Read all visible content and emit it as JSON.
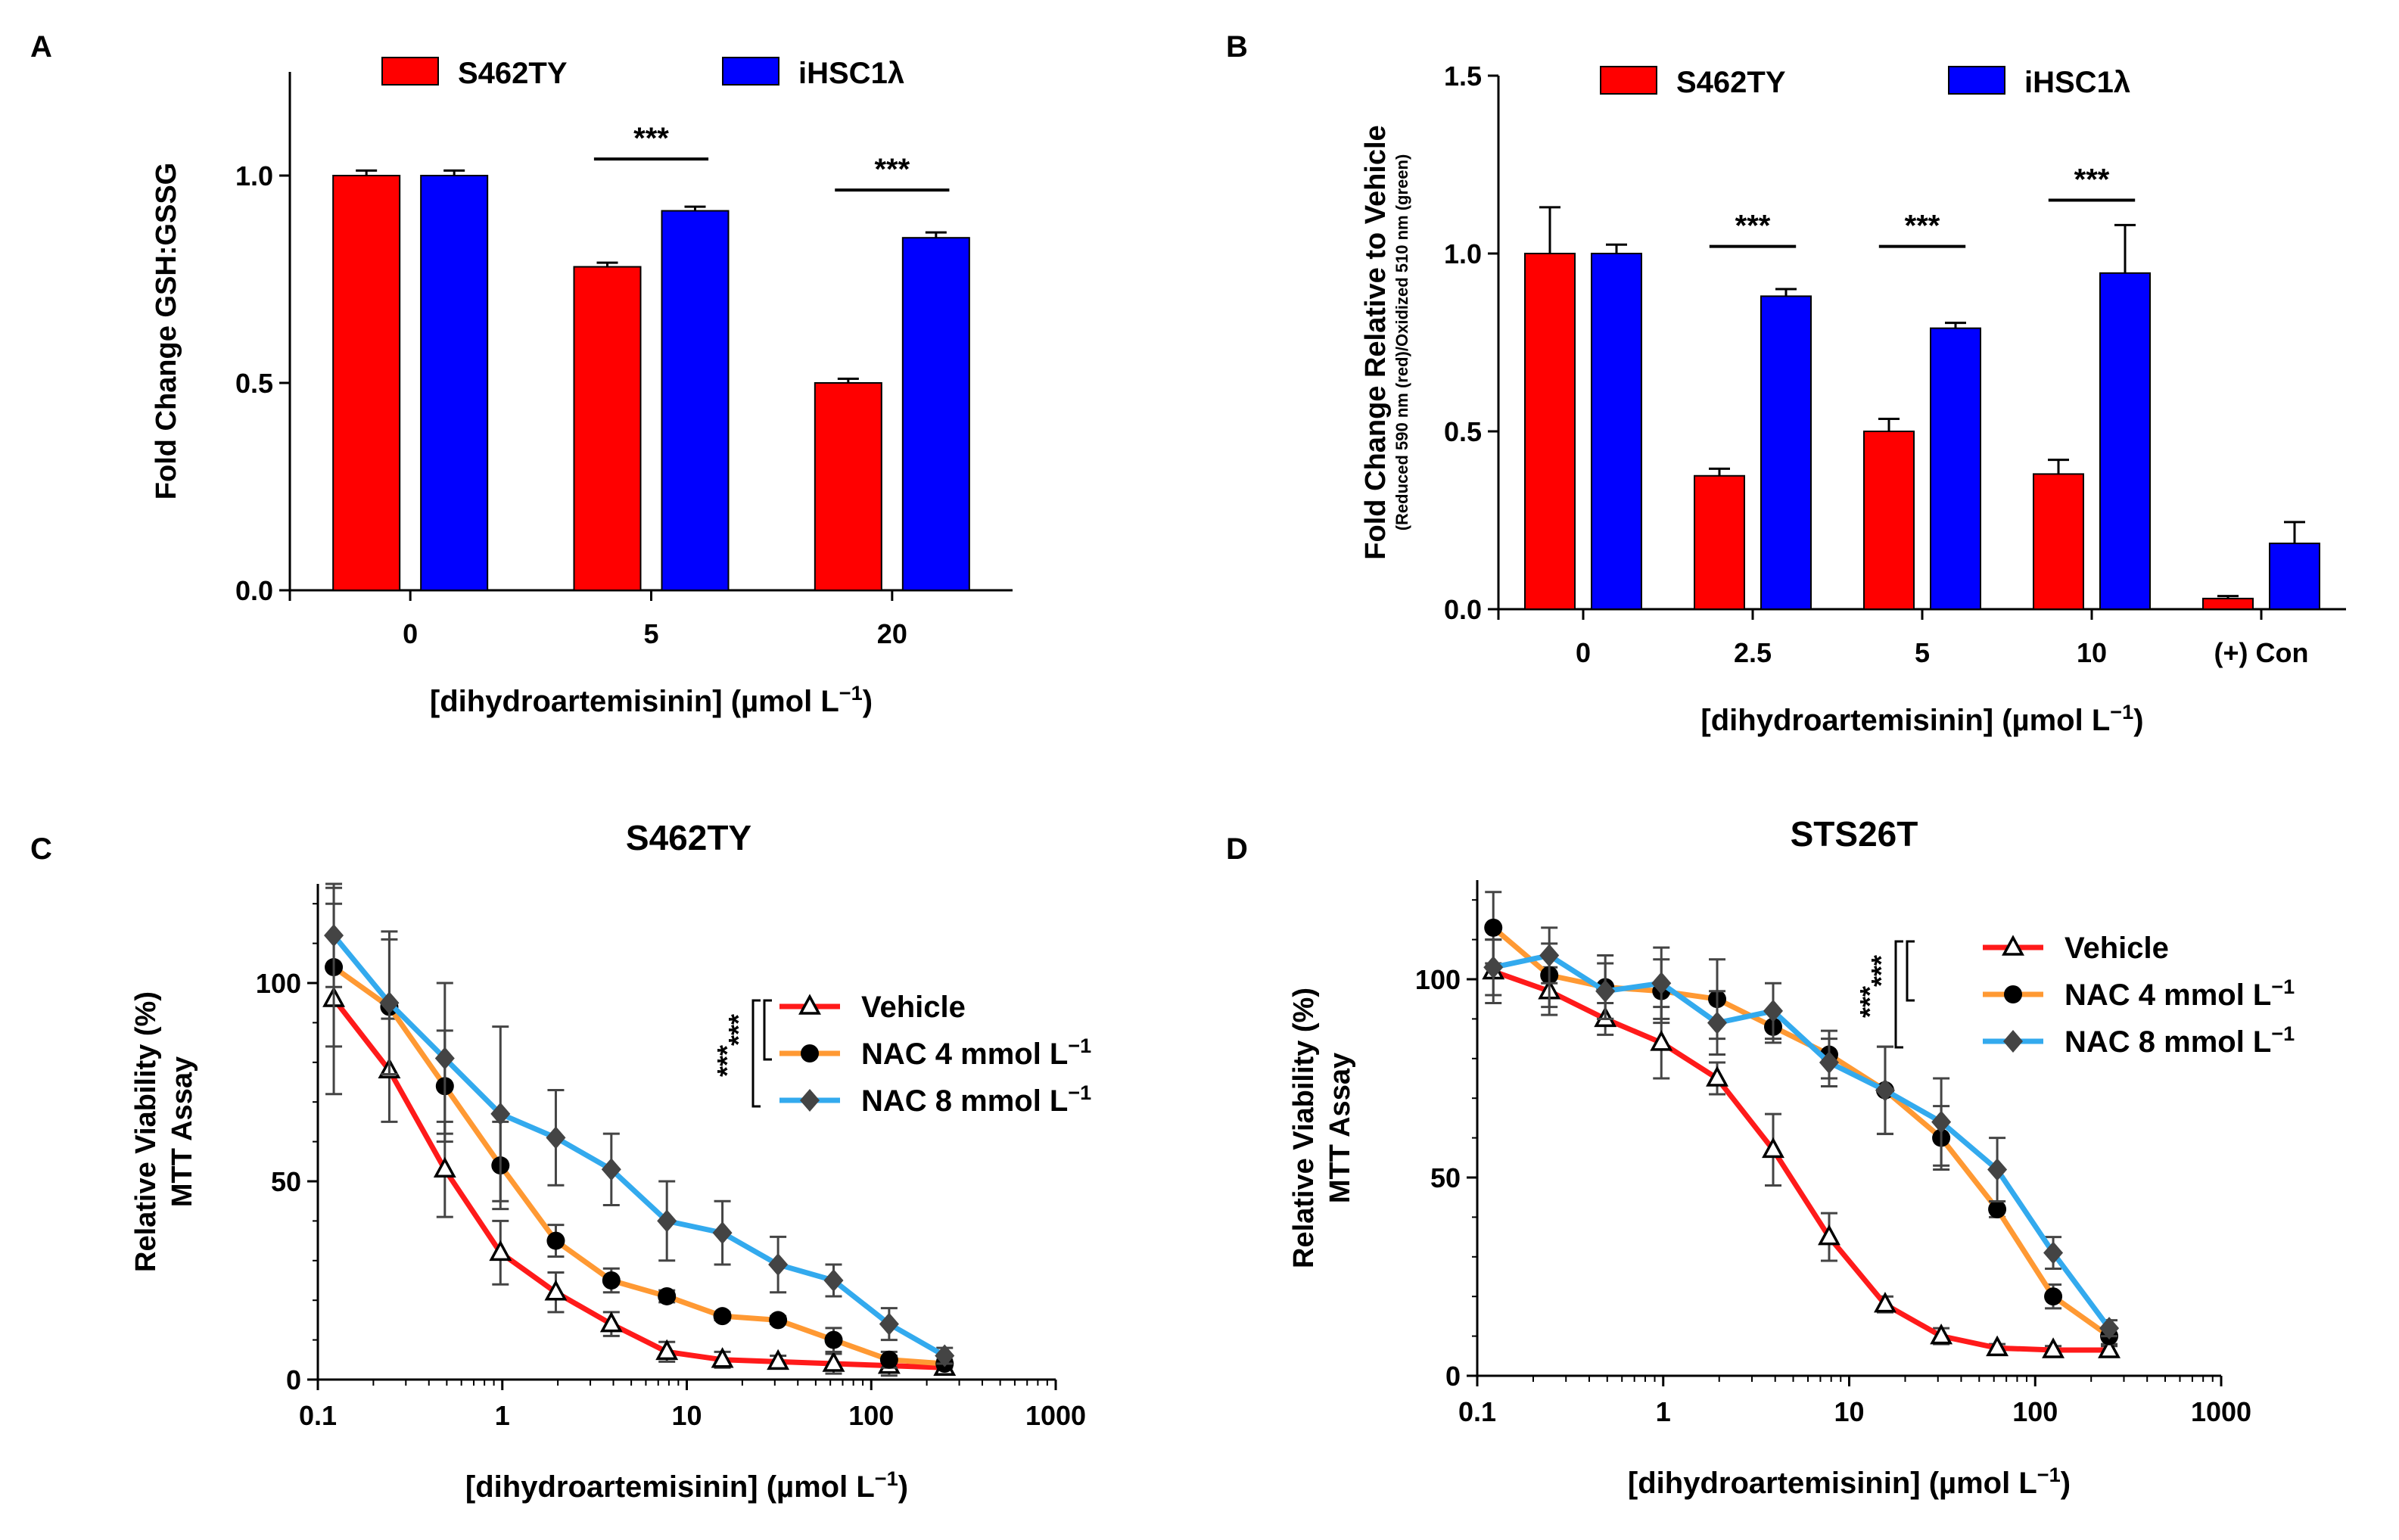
{
  "colors": {
    "red": "#ff0000",
    "blue": "#0000ff",
    "curve_red": "#ff1a1a",
    "curve_orange": "#ff9933",
    "curve_blue": "#33aaee",
    "marker_dark": "#000000",
    "marker_gray": "#444444"
  },
  "chart_data": [
    {
      "panel": "A",
      "type": "bar",
      "title": "",
      "ylabel": "Fold  Change GSH:GSSG",
      "ylabel_sub": "",
      "xlabel": "[dihydroartemisinin] (µmol L",
      "xlabel_sup": "−1",
      "xlabel_end": ")",
      "categories": [
        "0",
        "5",
        "20"
      ],
      "ylim": [
        0,
        1.25
      ],
      "yticks": [
        "0.0",
        "0.5",
        "1.0"
      ],
      "ytick_values": [
        0,
        0.5,
        1.0
      ],
      "legend_position": "top",
      "series": [
        {
          "name": "S462TY",
          "color": "#ff0000",
          "values": [
            1.0,
            0.78,
            0.5
          ],
          "errors": [
            0.012,
            0.01,
            0.01
          ]
        },
        {
          "name": "iHSC1λ",
          "color": "#0000ff",
          "values": [
            1.0,
            0.915,
            0.85
          ],
          "errors": [
            0.012,
            0.01,
            0.013
          ]
        }
      ],
      "significance": [
        {
          "category_index": 1,
          "label": "***",
          "y": 1.04
        },
        {
          "category_index": 2,
          "label": "***",
          "y": 0.965
        }
      ]
    },
    {
      "panel": "B",
      "type": "bar",
      "title": "",
      "ylabel": "Fold  Change Relative to  Vehicle",
      "ylabel_sub": "(Reduced 590 nm (red)/Oxidized 510 nm (green)",
      "xlabel": "[dihydroartemisinin] (µmol L",
      "xlabel_sup": "−1",
      "xlabel_end": ")",
      "categories": [
        "0",
        "2.5",
        "5",
        "10",
        "(+) Con"
      ],
      "ylim": [
        0,
        1.5
      ],
      "yticks": [
        "0.0",
        "0.5",
        "1.0",
        "1.5"
      ],
      "ytick_values": [
        0,
        0.5,
        1.0,
        1.5
      ],
      "legend_position": "top",
      "series": [
        {
          "name": "S462TY",
          "color": "#ff0000",
          "values": [
            1.0,
            0.375,
            0.5,
            0.38,
            0.03
          ],
          "errors": [
            0.13,
            0.02,
            0.035,
            0.04,
            0.007
          ]
        },
        {
          "name": "iHSC1λ",
          "color": "#0000ff",
          "values": [
            1.0,
            0.88,
            0.79,
            0.945,
            0.185
          ],
          "errors": [
            0.025,
            0.02,
            0.015,
            0.135,
            0.06
          ]
        }
      ],
      "significance": [
        {
          "category_index": 1,
          "label": "***",
          "y": 1.02
        },
        {
          "category_index": 2,
          "label": "***",
          "y": 1.02
        },
        {
          "category_index": 3,
          "label": "***",
          "y": 1.15
        }
      ]
    },
    {
      "panel": "C",
      "type": "line",
      "title": "S462TY",
      "ylabel": "Relative Viability (%)",
      "ylabel_sub": "MTT  Assay",
      "xlabel": "[dihydroartemisinin] (µmol L",
      "xlabel_sup": "−1",
      "xlabel_end": ")",
      "xscale": "log",
      "xlim": [
        0.1,
        1000
      ],
      "ylim": [
        0,
        125
      ],
      "xticks": [
        "0.1",
        "1",
        "10",
        "100",
        "1000"
      ],
      "xtick_values": [
        0.1,
        1,
        10,
        100,
        1000
      ],
      "yticks": [
        "0",
        "50",
        "100"
      ],
      "ytick_values": [
        0,
        50,
        100
      ],
      "legend_position": "right",
      "x": [
        0.122,
        0.244,
        0.488,
        0.977,
        1.95,
        3.9,
        7.8,
        15.6,
        31.25,
        62.5,
        125,
        250
      ],
      "series": [
        {
          "name": "Vehicle",
          "color": "#ff1a1a",
          "marker": "triangle",
          "values": [
            96,
            78,
            53,
            32,
            22,
            14,
            7,
            5,
            4.5,
            4,
            3.5,
            3
          ],
          "errors": [
            24,
            13,
            12,
            8,
            5,
            3,
            2.5,
            2,
            1.5,
            2.5,
            2.5,
            1.5
          ]
        },
        {
          "name": "NAC 4 mmol L",
          "name_sup": "−1",
          "color": "#ff9933",
          "marker": "circle",
          "values": [
            104,
            94,
            74,
            54,
            35,
            25,
            21,
            16,
            15,
            10,
            5,
            4
          ],
          "errors": [
            20,
            17,
            14,
            11,
            4,
            3,
            1.5,
            1,
            1,
            3,
            2,
            1
          ]
        },
        {
          "name": "NAC 8 mmol L",
          "name_sup": "−1",
          "color": "#33aaee",
          "marker": "diamond",
          "values": [
            112,
            95,
            81,
            67,
            61,
            53,
            40,
            37,
            29,
            25,
            14,
            6
          ],
          "errors": [
            13,
            18,
            19,
            22,
            12,
            9,
            10,
            8,
            7,
            4,
            4,
            2
          ]
        }
      ],
      "significance_labels": [
        "***",
        "***"
      ]
    },
    {
      "panel": "D",
      "type": "line",
      "title": "STS26T",
      "ylabel": "Relative Viability (%)",
      "ylabel_sub": "MTT  Assay",
      "xlabel": "[dihydroartemisinin] (µmol L",
      "xlabel_sup": "−1",
      "xlabel_end": ")",
      "xscale": "log",
      "xlim": [
        0.1,
        1000
      ],
      "ylim": [
        0,
        125
      ],
      "xticks": [
        "0.1",
        "1",
        "10",
        "100",
        "1000"
      ],
      "xtick_values": [
        0.1,
        1,
        10,
        100,
        1000
      ],
      "yticks": [
        "0",
        "50",
        "100"
      ],
      "ytick_values": [
        0,
        50,
        100
      ],
      "legend_position": "top-right",
      "x": [
        0.122,
        0.244,
        0.488,
        0.977,
        1.95,
        3.9,
        7.8,
        15.6,
        31.25,
        62.5,
        125,
        250
      ],
      "series": [
        {
          "name": "Vehicle",
          "color": "#ff1a1a",
          "marker": "triangle",
          "values": [
            102,
            97,
            90,
            84,
            75,
            57,
            35,
            18,
            10,
            7,
            6.5,
            6.5
          ],
          "errors": [
            8,
            6,
            4,
            9,
            4,
            9,
            6,
            2,
            2,
            1,
            1,
            1
          ]
        },
        {
          "name": "NAC 4 mmol L",
          "name_sup": "−1",
          "color": "#ff9933",
          "marker": "circle",
          "values": [
            113,
            101,
            98,
            97,
            95,
            88,
            81,
            72,
            60,
            42,
            20,
            10
          ],
          "errors": [
            9,
            8,
            8,
            8,
            10,
            4,
            6,
            11,
            8,
            2,
            3,
            2
          ]
        },
        {
          "name": "NAC 8 mmol L",
          "name_sup": "−1",
          "color": "#33aaee",
          "marker": "diamond",
          "values": [
            103,
            106,
            97,
            99,
            89,
            92,
            79,
            72,
            64,
            52,
            31,
            12
          ],
          "errors": [
            7,
            7,
            7,
            9,
            8,
            7,
            6,
            11,
            11,
            8,
            4,
            2
          ]
        }
      ],
      "significance_labels": [
        "***",
        "***"
      ]
    }
  ]
}
